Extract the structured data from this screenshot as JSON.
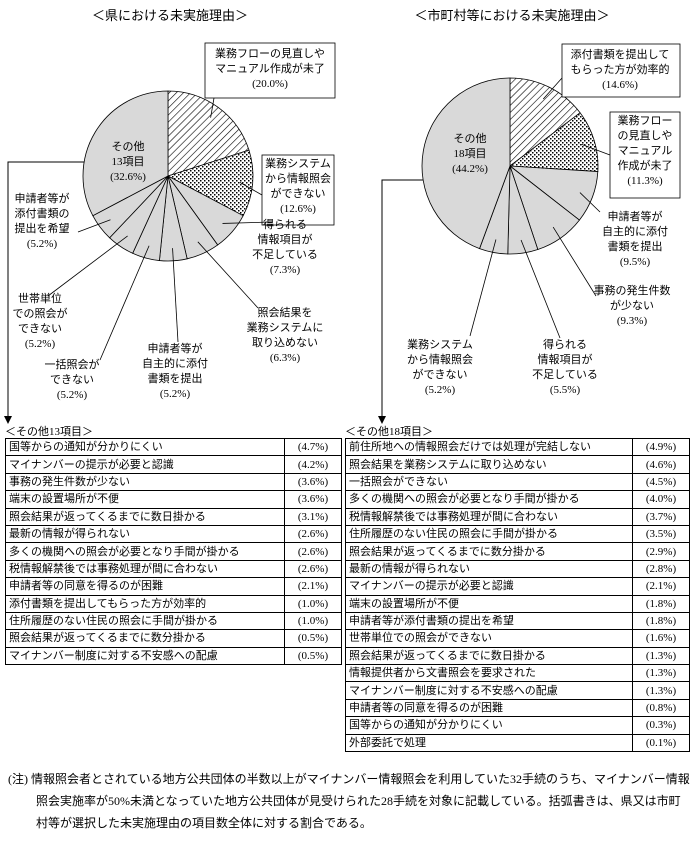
{
  "chart_data": [
    {
      "type": "pie",
      "title": "＜県における未実施理由＞",
      "categories": [
        "業務フローの見直しや\nマニュアル作成が未了",
        "業務システム\nから情報照会\nができない",
        "得られる\n情報項目が\n不足している",
        "照会結果を\n業務システムに\n取り込めない",
        "申請者等が\n自主的に添付\n書類を提出",
        "一括照会が\nできない",
        "世帯単位\nでの照会が\nできない",
        "申請者等が\n添付書類の\n提出を希望",
        "その他\n13項目"
      ],
      "values": [
        20.0,
        12.6,
        7.3,
        6.3,
        5.2,
        5.2,
        5.2,
        5.2,
        32.6
      ],
      "value_labels": [
        "(20.0%)",
        "(12.6%)",
        "(7.3%)",
        "(6.3%)",
        "(5.2%)",
        "(5.2%)",
        "(5.2%)",
        "(5.2%)",
        "(32.6%)"
      ],
      "colors": [
        "#ffffff",
        "#ffffff",
        "#d9d9d9",
        "#d9d9d9",
        "#d9d9d9",
        "#d9d9d9",
        "#d9d9d9",
        "#d9d9d9",
        "#d9d9d9"
      ]
    },
    {
      "type": "pie",
      "title": "＜市町村等における未実施理由＞",
      "categories": [
        "添付書類を提出して\nもらった方が効率的",
        "業務フロー\nの見直しや\nマニュアル\n作成が未了",
        "申請者等が\n自主的に添付\n書類を提出",
        "事務の発生件数\nが少ない",
        "得られる\n情報項目が\n不足している",
        "業務システム\nから情報照会\nができない",
        "その他\n18項目"
      ],
      "values": [
        14.6,
        11.3,
        9.5,
        9.3,
        5.5,
        5.2,
        44.2
      ],
      "value_labels": [
        "(14.6%)",
        "(11.3%)",
        "(9.5%)",
        "(9.3%)",
        "(5.5%)",
        "(5.2%)",
        "(44.2%)"
      ],
      "colors": [
        "#ffffff",
        "#ffffff",
        "#d9d9d9",
        "#d9d9d9",
        "#d9d9d9",
        "#d9d9d9",
        "#d9d9d9"
      ]
    }
  ],
  "tables": [
    {
      "caption": "＜その他13項目＞",
      "rows": [
        [
          "国等からの通知が分かりにくい",
          "(4.7%)"
        ],
        [
          "マイナンバーの提示が必要と認識",
          "(4.2%)"
        ],
        [
          "事務の発生件数が少ない",
          "(3.6%)"
        ],
        [
          "端末の設置場所が不便",
          "(3.6%)"
        ],
        [
          "照会結果が返ってくるまでに数日掛かる",
          "(3.1%)"
        ],
        [
          "最新の情報が得られない",
          "(2.6%)"
        ],
        [
          "多くの機関への照会が必要となり手間が掛かる",
          "(2.6%)"
        ],
        [
          "税情報解禁後では事務処理が間に合わない",
          "(2.6%)"
        ],
        [
          "申請者等の同意を得るのが困難",
          "(2.1%)"
        ],
        [
          "添付書類を提出してもらった方が効率的",
          "(1.0%)"
        ],
        [
          "住所履歴のない住民の照会に手間が掛かる",
          "(1.0%)"
        ],
        [
          "照会結果が返ってくるまでに数分掛かる",
          "(0.5%)"
        ],
        [
          "マイナンバー制度に対する不安感への配慮",
          "(0.5%)"
        ]
      ]
    },
    {
      "caption": "＜その他18項目＞",
      "rows": [
        [
          "前住所地への情報照会だけでは処理が完結しない",
          "(4.9%)"
        ],
        [
          "照会結果を業務システムに取り込めない",
          "(4.6%)"
        ],
        [
          "一括照会ができない",
          "(4.5%)"
        ],
        [
          "多くの機関への照会が必要となり手間が掛かる",
          "(4.0%)"
        ],
        [
          "税情報解禁後では事務処理が間に合わない",
          "(3.7%)"
        ],
        [
          "住所履歴のない住民の照会に手間が掛かる",
          "(3.5%)"
        ],
        [
          "照会結果が返ってくるまでに数分掛かる",
          "(2.9%)"
        ],
        [
          "最新の情報が得られない",
          "(2.8%)"
        ],
        [
          "マイナンバーの提示が必要と認識",
          "(2.1%)"
        ],
        [
          "端末の設置場所が不便",
          "(1.8%)"
        ],
        [
          "申請者等が添付書類の提出を希望",
          "(1.8%)"
        ],
        [
          "世帯単位での照会ができない",
          "(1.6%)"
        ],
        [
          "照会結果が返ってくるまでに数日掛かる",
          "(1.3%)"
        ],
        [
          "情報提供者から文書照会を要求された",
          "(1.3%)"
        ],
        [
          "マイナンバー制度に対する不安感への配慮",
          "(1.3%)"
        ],
        [
          "申請者等の同意を得るのが困難",
          "(0.8%)"
        ],
        [
          "国等からの通知が分かりにくい",
          "(0.3%)"
        ],
        [
          "外部委託で処理",
          "(0.1%)"
        ]
      ]
    }
  ],
  "note": {
    "mark": "(注)",
    "text": "情報照会者とされている地方公共団体の半数以上がマイナンバー情報照会を利用していた32手続のうち、マイナンバー情報照会実施率が50%未満となっていた地方公共団体が見受けられた28手続を対象に記載している。括弧書きは、県又は市町村等が選択した未実施理由の項目数全体に対する割合である。"
  }
}
